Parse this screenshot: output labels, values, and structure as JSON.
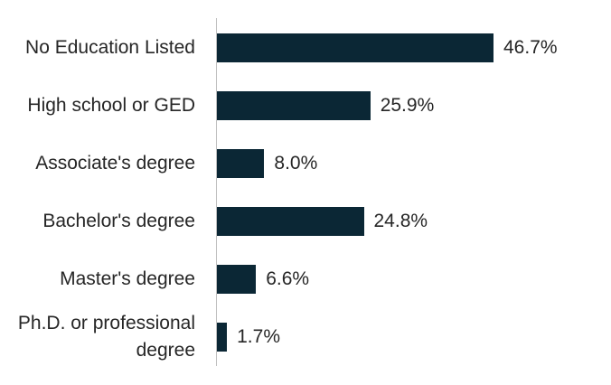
{
  "chart_data": {
    "type": "bar",
    "orientation": "horizontal",
    "categories": [
      "No Education Listed",
      "High school or GED",
      "Associate's degree",
      "Bachelor's degree",
      "Master's degree",
      "Ph.D. or professional degree"
    ],
    "values": [
      46.7,
      25.9,
      8.0,
      24.8,
      6.6,
      1.7
    ],
    "value_labels": [
      "46.7%",
      "25.9%",
      "8.0%",
      "24.8%",
      "6.6%",
      "1.7%"
    ],
    "color": "#0b2735"
  }
}
